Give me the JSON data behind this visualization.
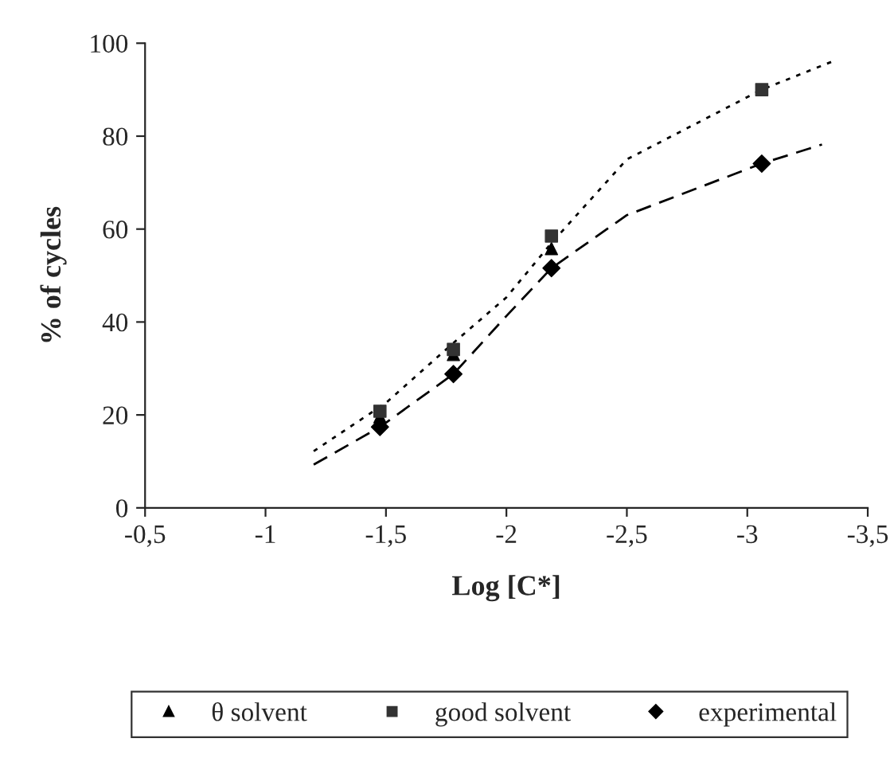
{
  "chart_data": {
    "type": "scatter",
    "xlabel": "Log [C*]",
    "ylabel": "% of cycles",
    "xlim": [
      -0.5,
      -3.5
    ],
    "ylim": [
      0,
      100
    ],
    "xticks": [
      {
        "value": -0.5,
        "label": "-0,5"
      },
      {
        "value": -1,
        "label": "-1"
      },
      {
        "value": -1.5,
        "label": "-1,5"
      },
      {
        "value": -2,
        "label": "-2"
      },
      {
        "value": -2.5,
        "label": "-2,5"
      },
      {
        "value": -3,
        "label": "-3"
      },
      {
        "value": -3.5,
        "label": "-3,5"
      }
    ],
    "yticks": [
      0,
      20,
      40,
      60,
      80,
      100
    ],
    "grid": false,
    "legend": "bottom",
    "series": [
      {
        "name": "θ solvent",
        "marker": "triangle",
        "color": "#000000",
        "x": [
          -1.475,
          -1.78,
          -2.187
        ],
        "values": [
          19.6,
          33.0,
          55.8
        ]
      },
      {
        "name": "good solvent",
        "marker": "square",
        "color": "#333333",
        "x": [
          -1.475,
          -1.78,
          -2.187,
          -3.06
        ],
        "values": [
          20.8,
          34.1,
          58.5,
          90
        ]
      },
      {
        "name": "experimental",
        "marker": "diamond",
        "color": "#000000",
        "x": [
          -1.475,
          -1.78,
          -2.187,
          -3.06
        ],
        "values": [
          17.4,
          28.8,
          51.6,
          74.1
        ]
      },
      {
        "type": "line",
        "line_style": "dotted",
        "color": "#000000",
        "x": [
          -1.2,
          -1.5,
          -1.78,
          -2.0,
          -2.187,
          -2.5,
          -3.06,
          -3.35
        ],
        "values": [
          12.2,
          22.6,
          35.5,
          45.3,
          57.0,
          75,
          90,
          96
        ]
      },
      {
        "type": "line",
        "line_style": "dashed",
        "color": "#000000",
        "x": [
          -1.2,
          -1.475,
          -1.78,
          -2.0,
          -2.187,
          -2.5,
          -3.06,
          -3.31
        ],
        "values": [
          9.3,
          17.4,
          28.8,
          41.3,
          51.6,
          63,
          74.1,
          78.2
        ]
      }
    ]
  }
}
